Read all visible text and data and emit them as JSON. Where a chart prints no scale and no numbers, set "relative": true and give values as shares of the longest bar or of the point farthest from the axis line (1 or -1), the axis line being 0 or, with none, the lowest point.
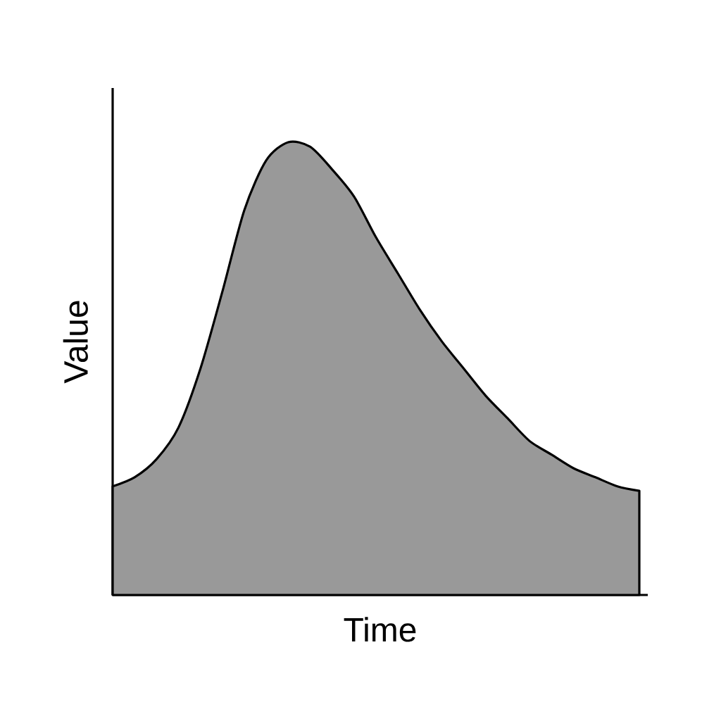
{
  "chart_data": {
    "type": "area",
    "relative": true,
    "xlabel": "Time",
    "ylabel": "Value",
    "categories": [
      null,
      null,
      null,
      null,
      null,
      null,
      null,
      null,
      null,
      null,
      null,
      null,
      null,
      null,
      null,
      null,
      null,
      null,
      null,
      null,
      null,
      null,
      null,
      null,
      null
    ],
    "series": [
      {
        "color": "#999999",
        "values": [
          0.24,
          0.26,
          0.3,
          0.37,
          0.5,
          0.67,
          0.85,
          0.96,
          1.0,
          0.99,
          0.94,
          0.88,
          0.79,
          0.71,
          0.63,
          0.56,
          0.5,
          0.44,
          0.39,
          0.34,
          0.31,
          0.28,
          0.26,
          0.24,
          0.23
        ]
      }
    ]
  }
}
